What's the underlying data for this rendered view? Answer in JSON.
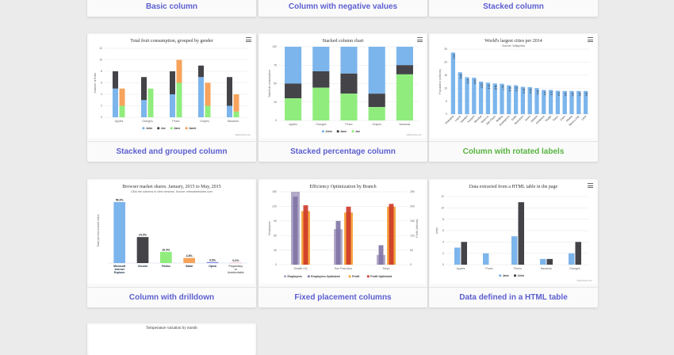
{
  "top_row": [
    {
      "label": "Basic column"
    },
    {
      "label": "Column with negative values"
    },
    {
      "label": "Stacked column"
    }
  ],
  "cards": [
    {
      "label": "Stacked and grouped column",
      "title": "Total fruit consumption, grouped by gender"
    },
    {
      "label": "Stacked percentage column",
      "title": "Stacked column chart"
    },
    {
      "label": "Column with rotated labels",
      "title": "World's largest cities per 2014",
      "subtitle": "Source: Wikipedia"
    },
    {
      "label": "Column with drilldown",
      "title": "Browser market shares. January, 2015 to May, 2015",
      "subtitle": "Click the columns to view versions. Source: netmarketshare.com"
    },
    {
      "label": "Fixed placement columns",
      "title": "Efficiency Optimization by Branch"
    },
    {
      "label": "Data defined in a HTML table",
      "title": "Data extracted from a HTML table in the page"
    }
  ],
  "bottom_row": [
    {
      "title": "Temperature variation by month"
    }
  ],
  "credits": "Highcharts.com",
  "colors": {
    "blue": "#7cb5ec",
    "dark": "#434348",
    "green": "#90ed7d",
    "orange": "#f7a35c",
    "purple": "#8085e9"
  },
  "chart_data": [
    {
      "type": "bar",
      "title": "Total fruit consumption, grouped by gender",
      "ylabel": "Number of fruits",
      "ylim": [
        0,
        12
      ],
      "yticks": [
        "0",
        "2",
        "4",
        "6",
        "8",
        "10",
        "12"
      ],
      "categories": [
        "Apples",
        "Oranges",
        "Pears",
        "Grapes",
        "Bananas"
      ],
      "series": [
        {
          "name": "John",
          "values": [
            5,
            3,
            4,
            7,
            2
          ],
          "stack": "male"
        },
        {
          "name": "Joe",
          "values": [
            3,
            4,
            4,
            2,
            5
          ],
          "stack": "male"
        },
        {
          "name": "Jane",
          "values": [
            2,
            5,
            6,
            2,
            1
          ],
          "stack": "female"
        },
        {
          "name": "Janet",
          "values": [
            3,
            0,
            4,
            4,
            3
          ],
          "stack": "female"
        }
      ]
    },
    {
      "type": "bar",
      "title": "Stacked column chart",
      "ylabel": "Total fruit consumption",
      "ylim": [
        0,
        100
      ],
      "yticks": [
        "0",
        "25",
        "50",
        "75",
        "100"
      ],
      "categories": [
        "Apples",
        "Oranges",
        "Pears",
        "Grapes",
        "Bananas"
      ],
      "series": [
        {
          "name": "John",
          "values": [
            5,
            3,
            4,
            7,
            2
          ]
        },
        {
          "name": "Jane",
          "values": [
            2,
            2,
            3,
            2,
            1
          ]
        },
        {
          "name": "Joe",
          "values": [
            3,
            4,
            4,
            2,
            5
          ]
        }
      ]
    },
    {
      "type": "bar",
      "title": "World's largest cities per 2014",
      "subtitle": "Source: Wikipedia",
      "ylabel": "Population (millions)",
      "ylim": [
        0,
        25
      ],
      "yticks": [
        "0",
        "5",
        "10",
        "15",
        "20",
        "25"
      ],
      "categories": [
        "Shanghai",
        "Lagos",
        "Istanbul",
        "Karachi",
        "Mumbai",
        "Moscow",
        "São Paulo",
        "Beijing",
        "Guangzhou",
        "Delhi",
        "Shenzhen",
        "Seoul",
        "Jakarta",
        "Kinshasa",
        "Tianjin",
        "Tokyo",
        "Cairo",
        "Dhaka",
        "Mexico City",
        "Lima"
      ],
      "values": [
        23.7,
        16.1,
        14.2,
        14.0,
        12.5,
        12.1,
        11.8,
        11.7,
        11.1,
        11.1,
        10.5,
        10.4,
        10.0,
        9.3,
        9.3,
        9.0,
        8.9,
        8.9,
        8.9,
        8.9
      ],
      "value_labels": [
        "23.7",
        "16.1",
        "14.2",
        "14.0",
        "12.5",
        "12.1",
        "11.8",
        "11.7",
        "11.1",
        "11.1",
        "10.5",
        "10.4",
        "10.0",
        "9.3",
        "9.3",
        "9.0",
        "8.9",
        "8.9",
        "8.9",
        "8.9"
      ]
    },
    {
      "type": "bar",
      "title": "Browser market shares. January, 2015 to May, 2015",
      "subtitle": "Click the columns to view versions. Source: netmarketshare.com",
      "ylabel": "Total percent market share",
      "ylim": [
        0,
        60
      ],
      "categories": [
        "Microsoft Internet Explorer",
        "Chrome",
        "Firefox",
        "Safari",
        "Opera",
        "Proprietary or Undetectable"
      ],
      "values": [
        56.33,
        24.03,
        10.38,
        4.77,
        0.91,
        0.2
      ],
      "value_labels": [
        "56.3%",
        "24.0%",
        "10.4%",
        "4.8%",
        "0.9%",
        "0.2%"
      ],
      "colors": [
        "#7cb5ec",
        "#434348",
        "#90ed7d",
        "#f7a35c",
        "#8085e9",
        "#f15c80"
      ]
    },
    {
      "type": "bar",
      "title": "Efficiency Optimization by Branch",
      "ylabel": "Employees",
      "y2label": "Profit (millions)",
      "ylim": [
        0,
        150
      ],
      "yticks": [
        "0",
        "30",
        "60",
        "90",
        "120",
        "150"
      ],
      "y2lim": [
        0,
        250
      ],
      "y2ticks": [
        "0",
        "50",
        "100",
        "150",
        "200",
        "250"
      ],
      "categories": [
        "Seattle HQ",
        "San Francisco",
        "Tokyo"
      ],
      "series": [
        {
          "name": "Employees",
          "values": [
            150,
            73,
            20
          ],
          "axis": "left"
        },
        {
          "name": "Employees Optimized",
          "values": [
            140,
            90,
            40
          ],
          "axis": "left"
        },
        {
          "name": "Profit",
          "values": [
            183.6,
            178.8,
            198.5
          ],
          "axis": "right"
        },
        {
          "name": "Profit Optimized",
          "values": [
            203.6,
            198.8,
            208.5
          ],
          "axis": "right"
        }
      ]
    },
    {
      "type": "bar",
      "title": "Data extracted from a HTML table in the page",
      "ylabel": "Units",
      "ylim": [
        0,
        12
      ],
      "yticks": [
        "0",
        "2",
        "4",
        "6",
        "8",
        "10",
        "12"
      ],
      "categories": [
        "Apples",
        "Pears",
        "Plums",
        "Bananas",
        "Oranges"
      ],
      "series": [
        {
          "name": "Jane",
          "values": [
            3,
            2,
            5,
            1,
            2
          ]
        },
        {
          "name": "John",
          "values": [
            4,
            0,
            11,
            1,
            4
          ]
        }
      ]
    }
  ]
}
